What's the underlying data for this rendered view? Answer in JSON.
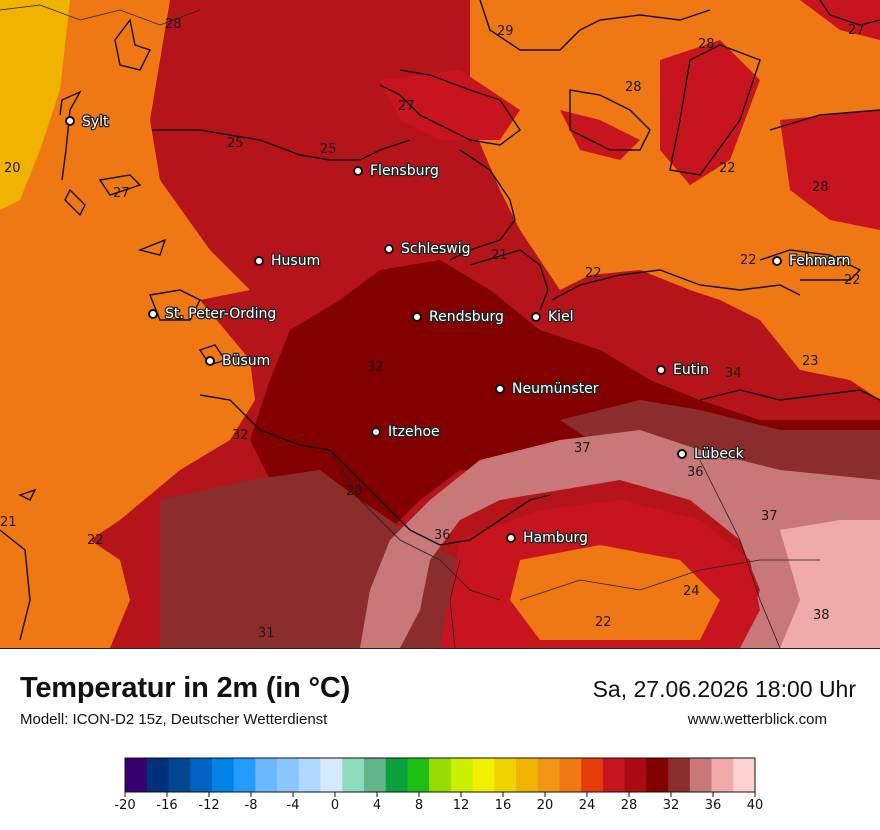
{
  "title": "Temperatur in 2m (in °C)",
  "model": "Modell: ICON-D2 15z, Deutscher Wetterdienst",
  "datetime": "Sa, 27.06.2026 18:00 Uhr",
  "website": "www.wetterblick.com",
  "cities": [
    {
      "name": "Sylt"
    },
    {
      "name": "Flensburg"
    },
    {
      "name": "Schleswig"
    },
    {
      "name": "Husum"
    },
    {
      "name": "Fehmarn"
    },
    {
      "name": "St. Peter-Ording"
    },
    {
      "name": "Rendsburg"
    },
    {
      "name": "Kiel"
    },
    {
      "name": "Büsum"
    },
    {
      "name": "Eutin"
    },
    {
      "name": "Neumünster"
    },
    {
      "name": "Itzehoe"
    },
    {
      "name": "Lübeck"
    },
    {
      "name": "Hamburg"
    }
  ],
  "isotherm_labels": [
    "28",
    "29",
    "28",
    "27",
    "27",
    "28",
    "25",
    "25",
    "22",
    "20",
    "27",
    "28",
    "21",
    "22",
    "22",
    "22",
    "32",
    "23",
    "34",
    "32",
    "37",
    "36",
    "28",
    "36",
    "37",
    "21",
    "22",
    "24",
    "22",
    "38",
    "31"
  ],
  "legend": {
    "ticks": [
      "-20",
      "-16",
      "-12",
      "-8",
      "-4",
      "0",
      "4",
      "8",
      "12",
      "16",
      "20",
      "24",
      "28",
      "32",
      "36",
      "40"
    ],
    "colors": [
      "#36006e",
      "#00307a",
      "#00478f",
      "#0062c2",
      "#0082e6",
      "#239cff",
      "#6cb8ff",
      "#8cc6ff",
      "#b0d8ff",
      "#d6eaff",
      "#8edcbc",
      "#64b48c",
      "#0aa03c",
      "#1ebe14",
      "#96dc00",
      "#c8f000",
      "#f0f000",
      "#f0d200",
      "#f0b400",
      "#f09614",
      "#f07814",
      "#e63c0a",
      "#c8141e",
      "#aa0a14",
      "#820000",
      "#8c2d2d",
      "#c87878",
      "#f0aaaa",
      "#ffd2d2"
    ]
  }
}
